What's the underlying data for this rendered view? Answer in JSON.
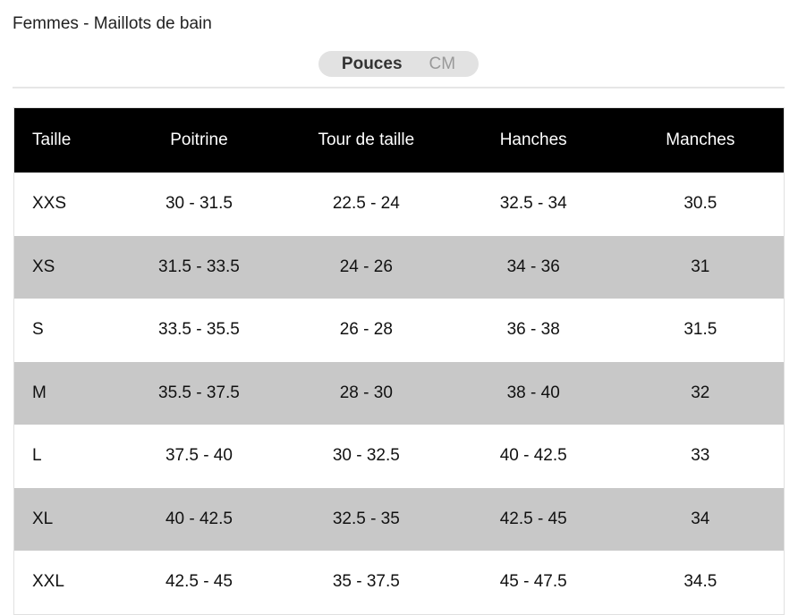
{
  "title": "Femmes - Maillots de bain",
  "unit_toggle": {
    "options": [
      "Pouces",
      "CM"
    ],
    "selected": "Pouces"
  },
  "table": {
    "headers": [
      "Taille",
      "Poitrine",
      "Tour de taille",
      "Hanches",
      "Manches"
    ],
    "rows": [
      [
        "XXS",
        "30 - 31.5",
        "22.5 - 24",
        "32.5 - 34",
        "30.5"
      ],
      [
        "XS",
        "31.5 - 33.5",
        "24 - 26",
        "34 - 36",
        "31"
      ],
      [
        "S",
        "33.5 - 35.5",
        "26 - 28",
        "36 - 38",
        "31.5"
      ],
      [
        "M",
        "35.5 - 37.5",
        "28 - 30",
        "38 - 40",
        "32"
      ],
      [
        "L",
        "37.5 - 40",
        "30 - 32.5",
        "40 - 42.5",
        "33"
      ],
      [
        "XL",
        "40 - 42.5",
        "32.5 - 35",
        "42.5 - 45",
        "34"
      ],
      [
        "XXL",
        "42.5 - 45",
        "35 - 37.5",
        "45 - 47.5",
        "34.5"
      ]
    ]
  },
  "colors": {
    "header_bg": "#000000",
    "alt_row_bg": "#c8c8c8",
    "toggle_bg": "#e2e2e2"
  }
}
